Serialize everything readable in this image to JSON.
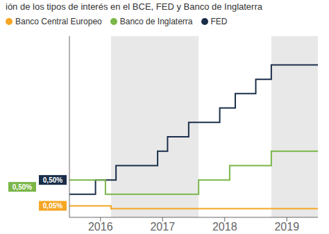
{
  "chart_data": {
    "type": "line",
    "title": "ión de los tipos de interés en el BCE, FED y Banco de Inglaterra",
    "series": [
      {
        "name": "FED",
        "color": "#1a2e4a",
        "x": [
          2015.5,
          2015.92,
          2015.92,
          2016.25,
          2016.25,
          2016.92,
          2016.92,
          2017.08,
          2017.08,
          2017.42,
          2017.42,
          2017.92,
          2017.92,
          2018.17,
          2018.17,
          2018.5,
          2018.5,
          2018.75,
          2018.75,
          2019.5
        ],
        "values": [
          0.25,
          0.25,
          0.5,
          0.5,
          0.75,
          0.75,
          1.0,
          1.0,
          1.25,
          1.25,
          1.5,
          1.5,
          1.75,
          1.75,
          2.0,
          2.0,
          2.25,
          2.25,
          2.5,
          2.5
        ]
      },
      {
        "name": "Banco de Inglaterra",
        "color": "#7ab648",
        "x": [
          2015.5,
          2016.08,
          2016.08,
          2017.58,
          2017.58,
          2018.08,
          2018.08,
          2018.75,
          2018.75,
          2019.5
        ],
        "values": [
          0.5,
          0.5,
          0.25,
          0.25,
          0.5,
          0.5,
          0.75,
          0.75,
          1.0,
          1.0
        ]
      },
      {
        "name": "Banco Central Europeo",
        "color": "#f5a623",
        "x": [
          2015.5,
          2016.17,
          2016.17,
          2019.5
        ],
        "values": [
          0.05,
          0.05,
          0.0,
          0.0
        ]
      }
    ],
    "xlim": [
      2015.5,
      2019.5
    ],
    "xticks": [
      2016,
      2017,
      2018,
      2019
    ],
    "ylim": [
      -0.15,
      3.0
    ],
    "tick_labels": "x",
    "legend": "upper left",
    "shaded_regions": [
      {
        "x": [
          2016.17,
          2017.58
        ],
        "color": "#e8e8e8"
      },
      {
        "x": [
          2018.75,
          2019.5
        ],
        "color": "#e8e8e8"
      }
    ],
    "annotations": [
      {
        "text": "0,50%",
        "y": 0.5,
        "color": "#1a2e4a"
      },
      {
        "text": "0,50%",
        "y": 0.38,
        "color": "#7ab648"
      },
      {
        "text": "0,05%",
        "y": 0.05,
        "color": "#f5a623"
      }
    ]
  }
}
